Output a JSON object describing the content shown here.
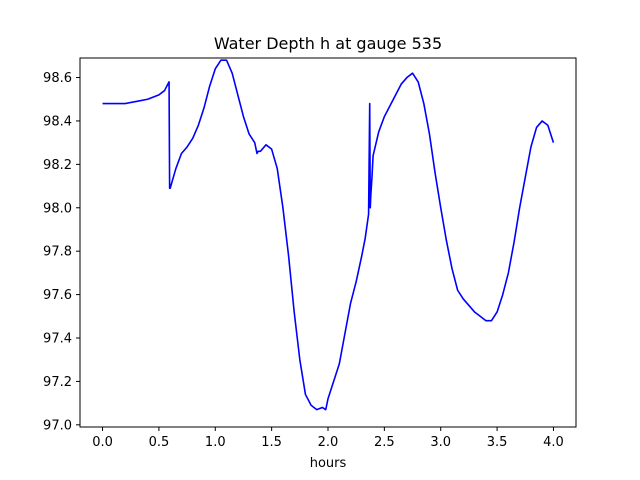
{
  "chart_data": {
    "type": "line",
    "title": "Water Depth h at gauge 535",
    "xlabel": "hours",
    "ylabel": "",
    "xlim": [
      -0.2,
      4.2
    ],
    "ylim": [
      96.99,
      98.69
    ],
    "xticks": [
      0.0,
      0.5,
      1.0,
      1.5,
      2.0,
      2.5,
      3.0,
      3.5,
      4.0
    ],
    "xtick_labels": [
      "0.0",
      "0.5",
      "1.0",
      "1.5",
      "2.0",
      "2.5",
      "3.0",
      "3.5",
      "4.0"
    ],
    "yticks": [
      97.0,
      97.2,
      97.4,
      97.6,
      97.8,
      98.0,
      98.2,
      98.4,
      98.6
    ],
    "ytick_labels": [
      "97.0",
      "97.2",
      "97.4",
      "97.6",
      "97.8",
      "98.0",
      "98.2",
      "98.4",
      "98.6"
    ],
    "grid": false,
    "legend": "none",
    "series": [
      {
        "color": "#0000ff",
        "x": [
          0.0,
          0.2,
          0.3,
          0.4,
          0.5,
          0.55,
          0.58,
          0.59,
          0.595,
          0.6,
          0.65,
          0.7,
          0.75,
          0.8,
          0.85,
          0.9,
          0.95,
          1.0,
          1.05,
          1.1,
          1.15,
          1.2,
          1.25,
          1.3,
          1.35,
          1.37,
          1.38,
          1.4,
          1.45,
          1.5,
          1.55,
          1.6,
          1.65,
          1.7,
          1.75,
          1.8,
          1.85,
          1.9,
          1.95,
          1.98,
          2.0,
          2.05,
          2.1,
          2.15,
          2.2,
          2.25,
          2.3,
          2.33,
          2.36,
          2.37,
          2.375,
          2.38,
          2.39,
          2.4,
          2.45,
          2.5,
          2.55,
          2.6,
          2.65,
          2.7,
          2.75,
          2.8,
          2.85,
          2.9,
          2.95,
          3.0,
          3.05,
          3.1,
          3.15,
          3.2,
          3.25,
          3.3,
          3.35,
          3.4,
          3.45,
          3.5,
          3.55,
          3.6,
          3.65,
          3.7,
          3.75,
          3.8,
          3.85,
          3.9,
          3.95,
          4.0
        ],
        "y": [
          98.48,
          98.48,
          98.49,
          98.5,
          98.52,
          98.54,
          98.57,
          98.58,
          98.09,
          98.09,
          98.18,
          98.25,
          98.28,
          98.32,
          98.38,
          98.46,
          98.56,
          98.64,
          98.68,
          98.68,
          98.62,
          98.52,
          98.42,
          98.34,
          98.3,
          98.25,
          98.26,
          98.26,
          98.29,
          98.27,
          98.18,
          98.0,
          97.78,
          97.52,
          97.3,
          97.14,
          97.09,
          97.07,
          97.08,
          97.07,
          97.12,
          97.2,
          97.28,
          97.42,
          97.56,
          97.66,
          97.78,
          97.86,
          97.97,
          98.48,
          98.0,
          98.06,
          98.14,
          98.24,
          98.35,
          98.42,
          98.47,
          98.52,
          98.57,
          98.6,
          98.62,
          98.58,
          98.48,
          98.34,
          98.16,
          98.0,
          97.85,
          97.72,
          97.62,
          97.58,
          97.55,
          97.52,
          97.5,
          97.48,
          97.48,
          97.52,
          97.6,
          97.7,
          97.84,
          98.0,
          98.14,
          98.28,
          98.37,
          98.4,
          98.38,
          98.3
        ]
      }
    ]
  }
}
